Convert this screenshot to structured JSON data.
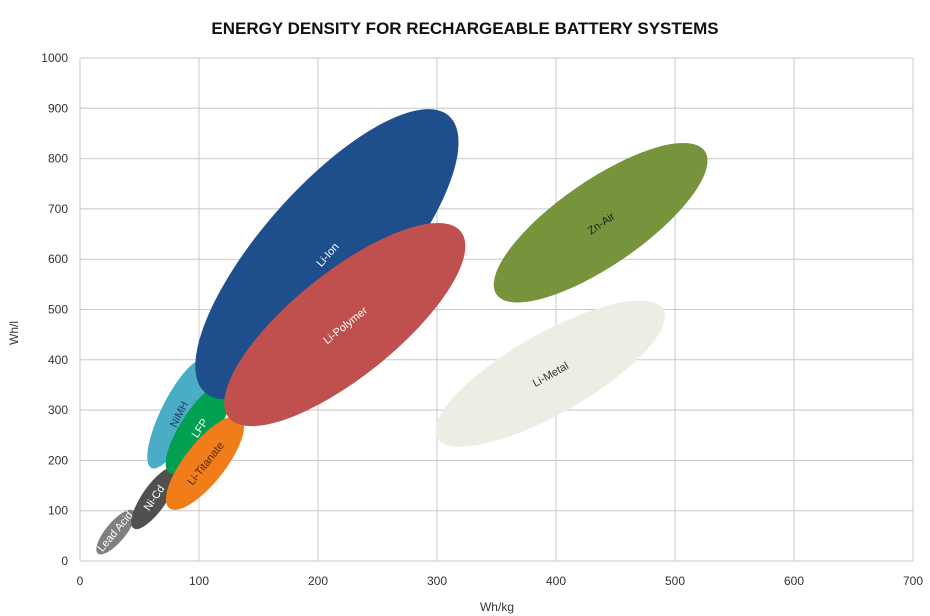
{
  "chart_data": {
    "type": "scatter",
    "title": "ENERGY DENSITY FOR RECHARGEABLE BATTERY SYSTEMS",
    "xlabel": "Wh/kg",
    "ylabel": "Wh/l",
    "xlim": [
      0,
      700
    ],
    "ylim": [
      0,
      1000
    ],
    "x_ticks": [
      "0",
      "100",
      "200",
      "300",
      "400",
      "500",
      "600",
      "700"
    ],
    "y_ticks": [
      "0",
      "100",
      "200",
      "300",
      "400",
      "500",
      "600",
      "700",
      "800",
      "900",
      "1000"
    ],
    "grid": true,
    "regions": [
      {
        "name": "Lead Acid",
        "x_range": [
          15,
          45
        ],
        "y_range": [
          15,
          100
        ],
        "color": "#7f7f7f",
        "label_color": "#ffffff"
      },
      {
        "name": "Ni-Cd",
        "x_range": [
          45,
          80
        ],
        "y_range": [
          65,
          185
        ],
        "color": "#505050",
        "label_color": "#ffffff"
      },
      {
        "name": "NiMH",
        "x_range": [
          60,
          105
        ],
        "y_range": [
          185,
          400
        ],
        "color": "#4bacc6",
        "label_color": "#1f3f5f"
      },
      {
        "name": "LFP",
        "x_range": [
          75,
          125
        ],
        "y_range": [
          175,
          355
        ],
        "color": "#00a050",
        "label_color": "#ffffff"
      },
      {
        "name": "Li-Titanate",
        "x_range": [
          75,
          135
        ],
        "y_range": [
          105,
          285
        ],
        "color": "#f07c1a",
        "label_color": "#5a2a00"
      },
      {
        "name": "Li-Ion",
        "x_range": [
          105,
          310
        ],
        "y_range": [
          335,
          885
        ],
        "color": "#1f4e8c",
        "label_color": "#ffffff"
      },
      {
        "name": "Li-Polymer",
        "x_range": [
          125,
          320
        ],
        "y_range": [
          285,
          655
        ],
        "color": "#c0504d",
        "label_color": "#ffffff"
      },
      {
        "name": "Zn-Air",
        "x_range": [
          350,
          525
        ],
        "y_range": [
          530,
          815
        ],
        "color": "#77933c",
        "label_color": "#222222"
      },
      {
        "name": "Li-Metal",
        "x_range": [
          300,
          490
        ],
        "y_range": [
          245,
          500
        ],
        "color": "#eeede3",
        "label_color": "#333333"
      }
    ]
  }
}
